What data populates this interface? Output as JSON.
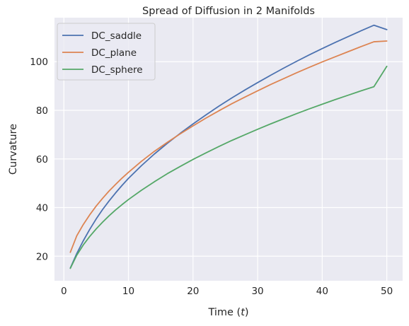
{
  "chart_data": {
    "type": "line",
    "title": "Spread of Diffusion in 2 Manifolds",
    "xlabel_text": "Time (",
    "xlabel_var": "t",
    "xlabel_close": ")",
    "ylabel": "Curvature",
    "xlim": [
      -1.45,
      52.45
    ],
    "ylim": [
      9.9,
      118.1
    ],
    "xticks": [
      0,
      10,
      20,
      30,
      40,
      50
    ],
    "yticks": [
      20,
      40,
      60,
      80,
      100
    ],
    "grid": true,
    "legend_position": "upper-left",
    "x": [
      1,
      2,
      3,
      4,
      5,
      6,
      7,
      8,
      9,
      10,
      12,
      14,
      16,
      18,
      20,
      22,
      24,
      26,
      28,
      30,
      32,
      34,
      36,
      38,
      40,
      42,
      44,
      46,
      48,
      50
    ],
    "series": [
      {
        "name": "DC_saddle",
        "color": "#4c72b0",
        "values": [
          15.1,
          21.1,
          26.3,
          31.0,
          35.3,
          39.2,
          42.7,
          46.0,
          49.1,
          52.0,
          57.2,
          62.0,
          66.4,
          70.5,
          74.4,
          78.1,
          81.7,
          85.1,
          88.3,
          91.4,
          94.4,
          97.3,
          100.1,
          102.8,
          105.4,
          107.9,
          110.3,
          112.7,
          115.0,
          113.2
        ]
      },
      {
        "name": "DC_plane",
        "color": "#dd8452",
        "values": [
          21.6,
          28.4,
          33.0,
          37.0,
          40.6,
          43.8,
          46.8,
          49.5,
          52.1,
          54.5,
          59.0,
          63.1,
          66.8,
          70.3,
          73.6,
          76.8,
          79.8,
          82.7,
          85.4,
          88.0,
          90.6,
          93.0,
          95.4,
          97.7,
          99.9,
          102.0,
          104.1,
          106.2,
          108.2,
          108.5
        ]
      },
      {
        "name": "DC_sphere",
        "color": "#55a868",
        "values": [
          15.0,
          20.4,
          24.6,
          28.1,
          31.2,
          34.0,
          36.6,
          39.0,
          41.2,
          43.3,
          47.1,
          50.6,
          53.9,
          56.9,
          59.8,
          62.5,
          65.1,
          67.6,
          69.9,
          72.2,
          74.4,
          76.5,
          78.6,
          80.6,
          82.5,
          84.4,
          86.2,
          88.0,
          89.7,
          98.1
        ]
      }
    ]
  }
}
